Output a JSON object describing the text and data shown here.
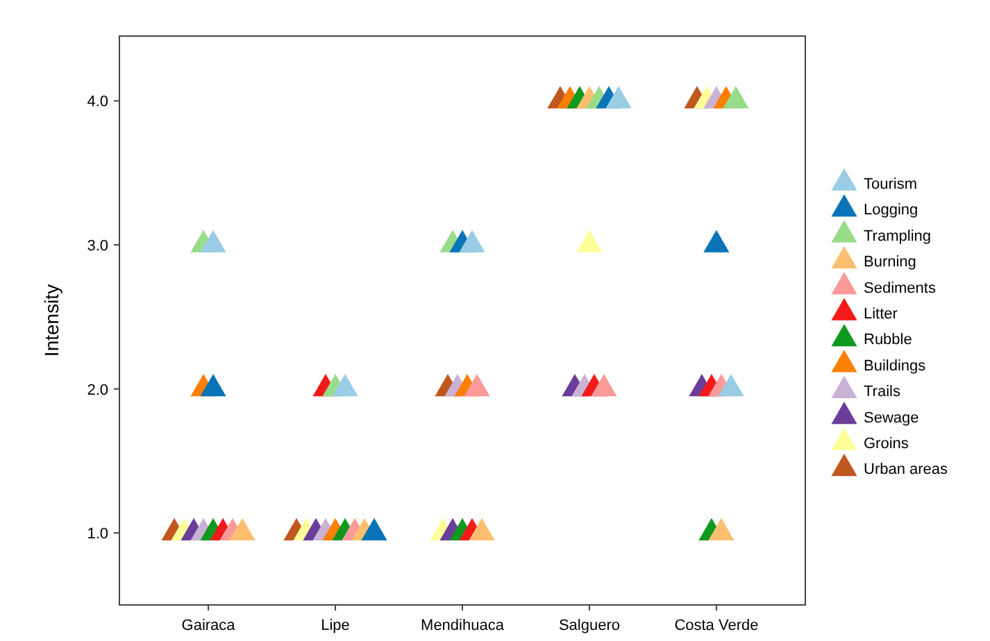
{
  "chart_data": {
    "type": "scatter",
    "ylabel": "Intensity",
    "categories": [
      "Gairaca",
      "Lipe",
      "Mendihuaca",
      "Salguero",
      "Costa Verde"
    ],
    "ylim": [
      0.5,
      4.45
    ],
    "yticks": [
      {
        "value": 1,
        "label": "1.0"
      },
      {
        "value": 2,
        "label": "2.0"
      },
      {
        "value": 3,
        "label": "3.0"
      },
      {
        "value": 4,
        "label": "4.0"
      }
    ],
    "grid": false,
    "legend": "right",
    "marker": "triangle",
    "series": [
      {
        "name": "Tourism",
        "color": "#99cde6",
        "values": [
          3,
          2,
          3,
          4,
          2
        ]
      },
      {
        "name": "Logging",
        "color": "#0a74b8",
        "values": [
          2,
          1,
          3,
          4,
          3
        ]
      },
      {
        "name": "Trampling",
        "color": "#98dc8a",
        "values": [
          3,
          2,
          3,
          4,
          4
        ]
      },
      {
        "name": "Burning",
        "color": "#fdbf6f",
        "values": [
          1,
          1,
          1,
          4,
          1
        ]
      },
      {
        "name": "Sediments",
        "color": "#fb9a99",
        "values": [
          1,
          1,
          2,
          2,
          2
        ]
      },
      {
        "name": "Litter",
        "color": "#f51a1a",
        "values": [
          1,
          2,
          1,
          2,
          2
        ]
      },
      {
        "name": "Rubble",
        "color": "#0f9a1f",
        "values": [
          1,
          1,
          1,
          4,
          1
        ]
      },
      {
        "name": "Buildings",
        "color": "#ff7f00",
        "values": [
          2,
          1,
          2,
          4,
          4
        ]
      },
      {
        "name": "Trails",
        "color": "#cab2d6",
        "values": [
          1,
          1,
          2,
          2,
          4
        ]
      },
      {
        "name": "Sewage",
        "color": "#6a3d9a",
        "values": [
          1,
          1,
          1,
          2,
          2
        ]
      },
      {
        "name": "Groins",
        "color": "#ffff99",
        "values": [
          1,
          1,
          1,
          3,
          4
        ]
      },
      {
        "name": "Urban areas",
        "color": "#c0571f",
        "values": [
          1,
          1,
          2,
          4,
          4
        ]
      }
    ]
  }
}
